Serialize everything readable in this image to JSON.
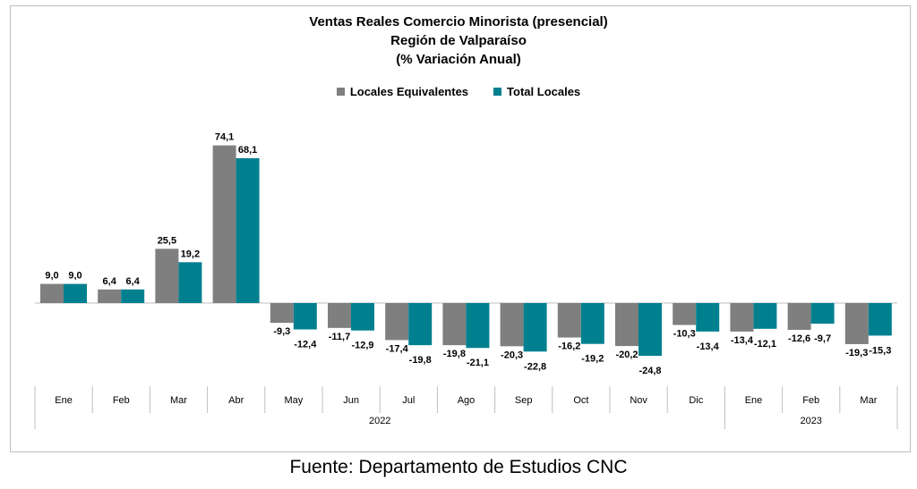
{
  "title_lines": [
    "Ventas Reales Comercio Minorista (presencial)",
    "Región de Valparaíso",
    "(% Variación Anual)"
  ],
  "footer": "Fuente: Departamento de Estudios CNC",
  "chart_data": {
    "type": "bar",
    "title": "Ventas Reales Comercio Minorista (presencial) Región de Valparaíso (% Variación Anual)",
    "categories": [
      "Ene",
      "Feb",
      "Mar",
      "Abr",
      "May",
      "Jun",
      "Jul",
      "Ago",
      "Sep",
      "Oct",
      "Nov",
      "Dic",
      "Ene",
      "Feb",
      "Mar"
    ],
    "groups": [
      {
        "label": "2022",
        "count": 12
      },
      {
        "label": "2023",
        "count": 3
      }
    ],
    "series": [
      {
        "name": "Locales Equivalentes",
        "color": "#7f7f7f",
        "values": [
          9.0,
          6.4,
          25.5,
          74.1,
          -9.3,
          -11.7,
          -17.4,
          -19.8,
          -20.3,
          -16.2,
          -20.2,
          -10.3,
          -13.4,
          -12.6,
          -19.3
        ]
      },
      {
        "name": "Total Locales",
        "color": "#00808f",
        "values": [
          9.0,
          6.4,
          19.2,
          68.1,
          -12.4,
          -12.9,
          -19.8,
          -21.1,
          -22.8,
          -19.2,
          -24.8,
          -13.4,
          -12.1,
          -9.7,
          -15.3
        ]
      }
    ],
    "value_labels": [
      [
        "9,0",
        "6,4",
        "25,5",
        "74,1",
        "-9,3",
        "-11,7",
        "-17,4",
        "-19,8",
        "-20,3",
        "-16,2",
        "-20,2",
        "-10,3",
        "-13,4",
        "-12,6",
        "-19,3"
      ],
      [
        "9,0",
        "6,4",
        "19,2",
        "68,1",
        "-12,4",
        "-12,9",
        "-19,8",
        "-21,1",
        "-22,8",
        "-19,2",
        "-24,8",
        "-13,4",
        "-12,1",
        "-9,7",
        "-15,3"
      ]
    ],
    "legend_position": "top-center",
    "grid": false
  }
}
